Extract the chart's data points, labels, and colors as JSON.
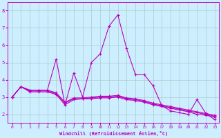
{
  "xlabel": "Windchill (Refroidissement éolien,°C)",
  "background_color": "#cceeff",
  "grid_color": "#aacccc",
  "line_color": "#bb00bb",
  "xlim": [
    -0.5,
    23.5
  ],
  "ylim": [
    1.5,
    8.5
  ],
  "xticks": [
    0,
    1,
    2,
    3,
    4,
    5,
    6,
    7,
    8,
    9,
    10,
    11,
    12,
    13,
    14,
    15,
    16,
    17,
    18,
    19,
    20,
    21,
    22,
    23
  ],
  "yticks": [
    2,
    3,
    4,
    5,
    6,
    7,
    8
  ],
  "line1_x": [
    0,
    1,
    2,
    3,
    4,
    5,
    6,
    7,
    8,
    9,
    10,
    11,
    12,
    13,
    14,
    15,
    16,
    17,
    18,
    19,
    20,
    21,
    22,
    23
  ],
  "line1_y": [
    3.0,
    3.6,
    3.3,
    3.3,
    3.3,
    3.15,
    2.55,
    2.85,
    2.9,
    2.9,
    2.95,
    2.95,
    3.0,
    2.85,
    2.8,
    2.7,
    2.55,
    2.45,
    2.35,
    2.25,
    2.15,
    2.0,
    1.95,
    1.85
  ],
  "line2_x": [
    0,
    1,
    2,
    3,
    4,
    5,
    6,
    7,
    8,
    9,
    10,
    11,
    12,
    13,
    14,
    15,
    16,
    17,
    18,
    19,
    20,
    21,
    22,
    23
  ],
  "line2_y": [
    3.0,
    3.6,
    3.35,
    3.35,
    3.35,
    3.2,
    2.65,
    2.9,
    2.9,
    2.95,
    3.0,
    3.0,
    3.05,
    2.9,
    2.85,
    2.75,
    2.6,
    2.5,
    2.4,
    2.3,
    2.2,
    2.1,
    2.0,
    1.9
  ],
  "line3_x": [
    0,
    1,
    2,
    3,
    4,
    5,
    6,
    7,
    8,
    9,
    10,
    11,
    12,
    13,
    14,
    15,
    16,
    17,
    18,
    19,
    20,
    21,
    22,
    23
  ],
  "line3_y": [
    3.0,
    3.6,
    3.4,
    3.4,
    3.4,
    3.25,
    2.7,
    2.95,
    2.95,
    3.0,
    3.05,
    3.05,
    3.1,
    2.95,
    2.9,
    2.8,
    2.65,
    2.55,
    2.45,
    2.35,
    2.25,
    2.15,
    2.05,
    1.95
  ],
  "line4_x": [
    0,
    1,
    2,
    3,
    4,
    5,
    6,
    7,
    8,
    9,
    10,
    11,
    12,
    13,
    14,
    15,
    16,
    17,
    18,
    19,
    20,
    21,
    22,
    23
  ],
  "line4_y": [
    3.0,
    3.6,
    3.4,
    3.4,
    3.4,
    5.2,
    2.55,
    4.4,
    3.0,
    5.0,
    5.5,
    7.1,
    7.75,
    5.8,
    4.3,
    4.3,
    3.65,
    2.5,
    2.2,
    2.1,
    2.0,
    2.85,
    2.05,
    1.7
  ]
}
